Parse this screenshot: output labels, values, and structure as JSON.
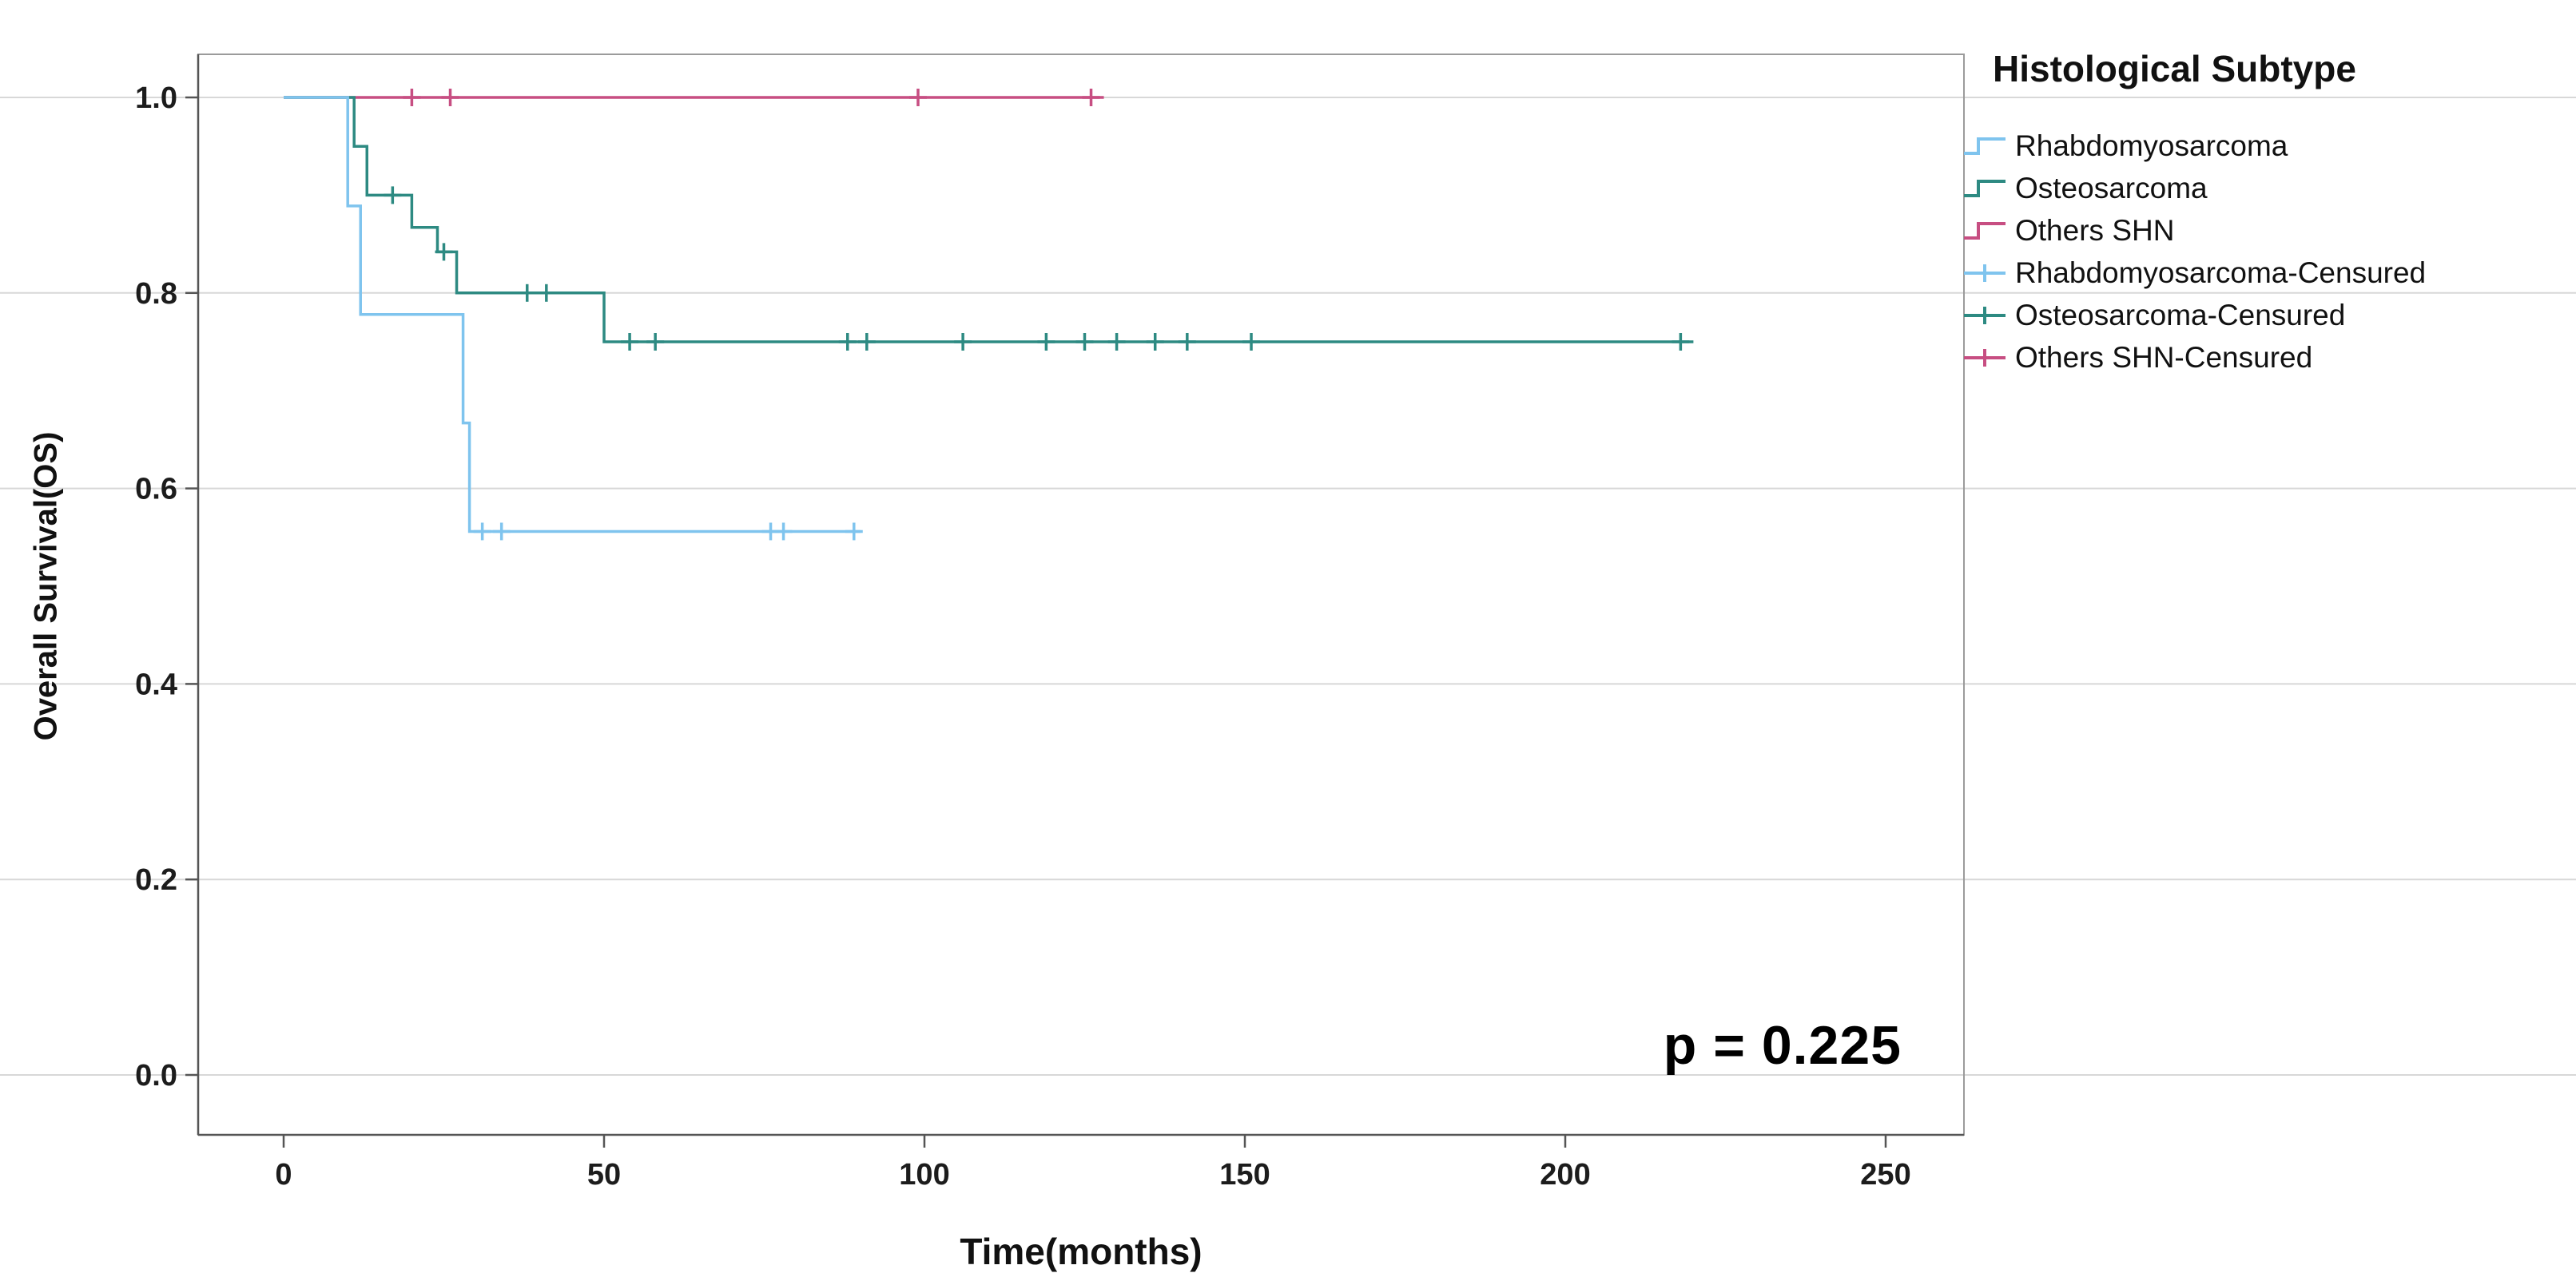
{
  "figure": {
    "y_axis_label": "Overall Survival(OS)",
    "x_axis_label": "Time(months)",
    "p_value_text": "p = 0.225"
  },
  "legend": {
    "title": "Histological Subtype",
    "entries": [
      {
        "label": "Rhabdomyosarcoma",
        "type": "line",
        "color": "#7FC4EE"
      },
      {
        "label": "Osteosarcoma",
        "type": "line",
        "color": "#2D8A82"
      },
      {
        "label": "Others SHN",
        "type": "line",
        "color": "#C74E82"
      },
      {
        "label": "Rhabdomyosarcoma-Censured",
        "type": "censored",
        "color": "#7FC4EE"
      },
      {
        "label": "Osteosarcoma-Censured",
        "type": "censored",
        "color": "#2D8A82"
      },
      {
        "label": "Others SHN-Censured",
        "type": "censored",
        "color": "#C74E82"
      }
    ]
  },
  "chart_data": {
    "type": "line",
    "subtype": "kaplan_meier_step",
    "title": "",
    "xlabel": "Time(months)",
    "ylabel": "Overall Survival(OS)",
    "xlim": [
      0,
      262
    ],
    "ylim": [
      0,
      1.0
    ],
    "x_ticks": [
      0,
      50,
      100,
      150,
      200,
      250
    ],
    "y_ticks": [
      0.0,
      0.2,
      0.4,
      0.6,
      0.8,
      1.0
    ],
    "grid": "horizontal",
    "legend_position": "top-right",
    "annotation": "p = 0.225",
    "series": [
      {
        "name": "Rhabdomyosarcoma",
        "color": "#7FC4EE",
        "steps": [
          [
            0,
            1.0
          ],
          [
            10,
            0.889
          ],
          [
            12,
            0.778
          ],
          [
            28,
            0.667
          ],
          [
            29,
            0.556
          ]
        ],
        "end": 90,
        "censored": [
          [
            31,
            0.556
          ],
          [
            34,
            0.556
          ],
          [
            76,
            0.556
          ],
          [
            78,
            0.556
          ],
          [
            89,
            0.556
          ]
        ]
      },
      {
        "name": "Osteosarcoma",
        "color": "#2D8A82",
        "steps": [
          [
            0,
            1.0
          ],
          [
            11,
            0.95
          ],
          [
            13,
            0.9
          ],
          [
            20,
            0.867
          ],
          [
            24,
            0.842
          ],
          [
            27,
            0.8
          ],
          [
            50,
            0.75
          ]
        ],
        "end": 220,
        "censored": [
          [
            17,
            0.9
          ],
          [
            25,
            0.842
          ],
          [
            38,
            0.8
          ],
          [
            41,
            0.8
          ],
          [
            54,
            0.75
          ],
          [
            58,
            0.75
          ],
          [
            88,
            0.75
          ],
          [
            91,
            0.75
          ],
          [
            106,
            0.75
          ],
          [
            119,
            0.75
          ],
          [
            125,
            0.75
          ],
          [
            130,
            0.75
          ],
          [
            136,
            0.75
          ],
          [
            141,
            0.75
          ],
          [
            151,
            0.75
          ],
          [
            218,
            0.75
          ]
        ]
      },
      {
        "name": "Others SHN",
        "color": "#C74E82",
        "steps": [
          [
            0,
            1.0
          ]
        ],
        "end": 128,
        "censored": [
          [
            20,
            1.0
          ],
          [
            26,
            1.0
          ],
          [
            99,
            1.0
          ],
          [
            126,
            1.0
          ]
        ]
      }
    ]
  }
}
